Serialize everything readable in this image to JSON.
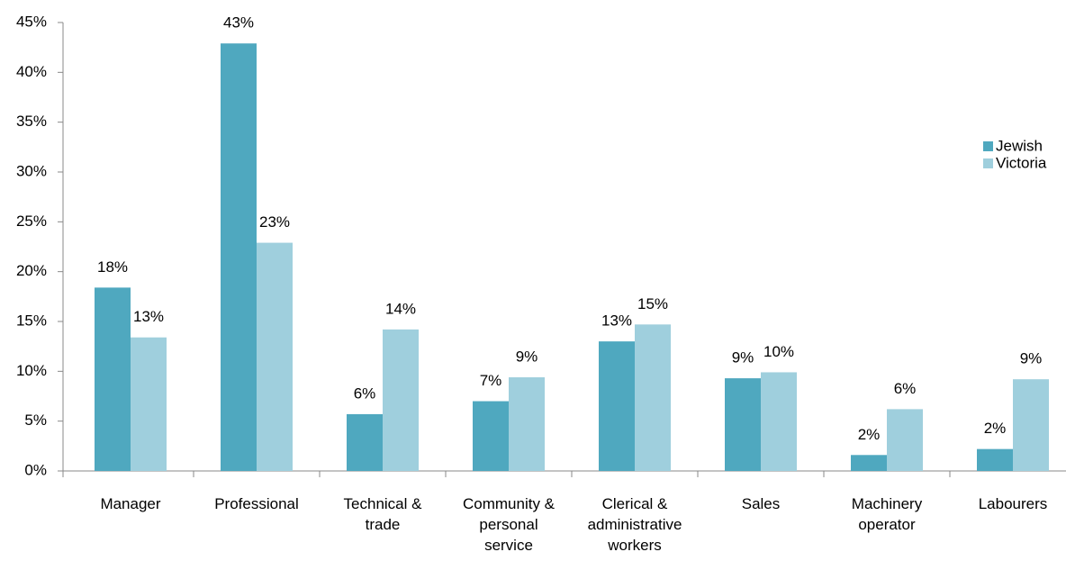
{
  "chart_data": {
    "type": "bar",
    "categories": [
      "Manager",
      "Professional",
      "Technical & trade",
      "Community & personal service",
      "Clerical & administrative workers",
      "Sales",
      "Machinery operator",
      "Labourers"
    ],
    "series": [
      {
        "name": "Jewish",
        "color": "#4fa8bf",
        "values": [
          18.4,
          42.9,
          5.7,
          7.0,
          13.0,
          9.3,
          1.6,
          2.2
        ],
        "value_labels": [
          "18%",
          "43%",
          "6%",
          "7%",
          "13%",
          "9%",
          "2%",
          "2%"
        ]
      },
      {
        "name": "Victoria",
        "color": "#9fcfdd",
        "values": [
          13.4,
          22.9,
          14.2,
          9.4,
          14.7,
          9.9,
          6.2,
          9.2
        ],
        "value_labels": [
          "13%",
          "23%",
          "14%",
          "9%",
          "15%",
          "10%",
          "6%",
          "9%"
        ]
      }
    ],
    "ylim": [
      0,
      45
    ],
    "yticks": [
      {
        "value": 0,
        "label": "0%"
      },
      {
        "value": 5,
        "label": "5%"
      },
      {
        "value": 10,
        "label": "10%"
      },
      {
        "value": 15,
        "label": "15%"
      },
      {
        "value": 20,
        "label": "20%"
      },
      {
        "value": 25,
        "label": "25%"
      },
      {
        "value": 30,
        "label": "30%"
      },
      {
        "value": 35,
        "label": "35%"
      },
      {
        "value": 40,
        "label": "40%"
      },
      {
        "value": 45,
        "label": "45%"
      }
    ],
    "grid": false,
    "legend": "right"
  }
}
